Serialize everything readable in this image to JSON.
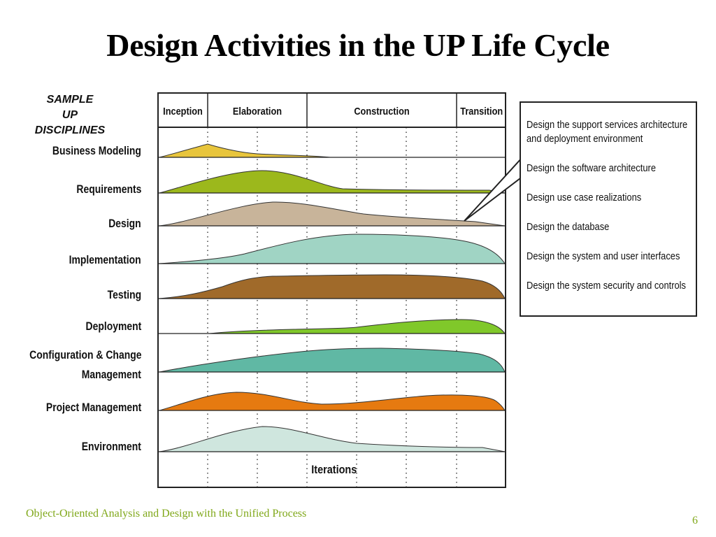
{
  "slide": {
    "title": "Design Activities in the UP Life Cycle",
    "footer": "Object-Oriented Analysis and Design with the Unified Process",
    "page_number": "6"
  },
  "diagram": {
    "disciplines_header": [
      "SAMPLE",
      "UP DISCIPLINES"
    ],
    "phases": [
      "Inception",
      "Elaboration",
      "Construction",
      "Transition"
    ],
    "disciplines": [
      {
        "label": "Business Modeling",
        "color": "#e8c53c"
      },
      {
        "label": "Requirements",
        "color": "#9cb81c"
      },
      {
        "label": "Design",
        "color": "#c8b49a"
      },
      {
        "label": "Implementation",
        "color": "#a0d4c4"
      },
      {
        "label": "Testing",
        "color": "#a06a2a"
      },
      {
        "label": "Deployment",
        "color": "#80c82a"
      },
      {
        "label": "Configuration & Change",
        "label2": "Management",
        "color": "#60b8a4"
      },
      {
        "label": "Project Management",
        "color": "#e67a10"
      },
      {
        "label": "Environment",
        "color": "#cfe6de"
      }
    ],
    "iterations_label": "Iterations"
  },
  "callout": {
    "items": [
      "Design the support services architecture and deployment environment",
      "Design the software architecture",
      "Design use case realizations",
      "Design the database",
      "Design the system and user interfaces",
      "Design the system security and controls"
    ]
  }
}
